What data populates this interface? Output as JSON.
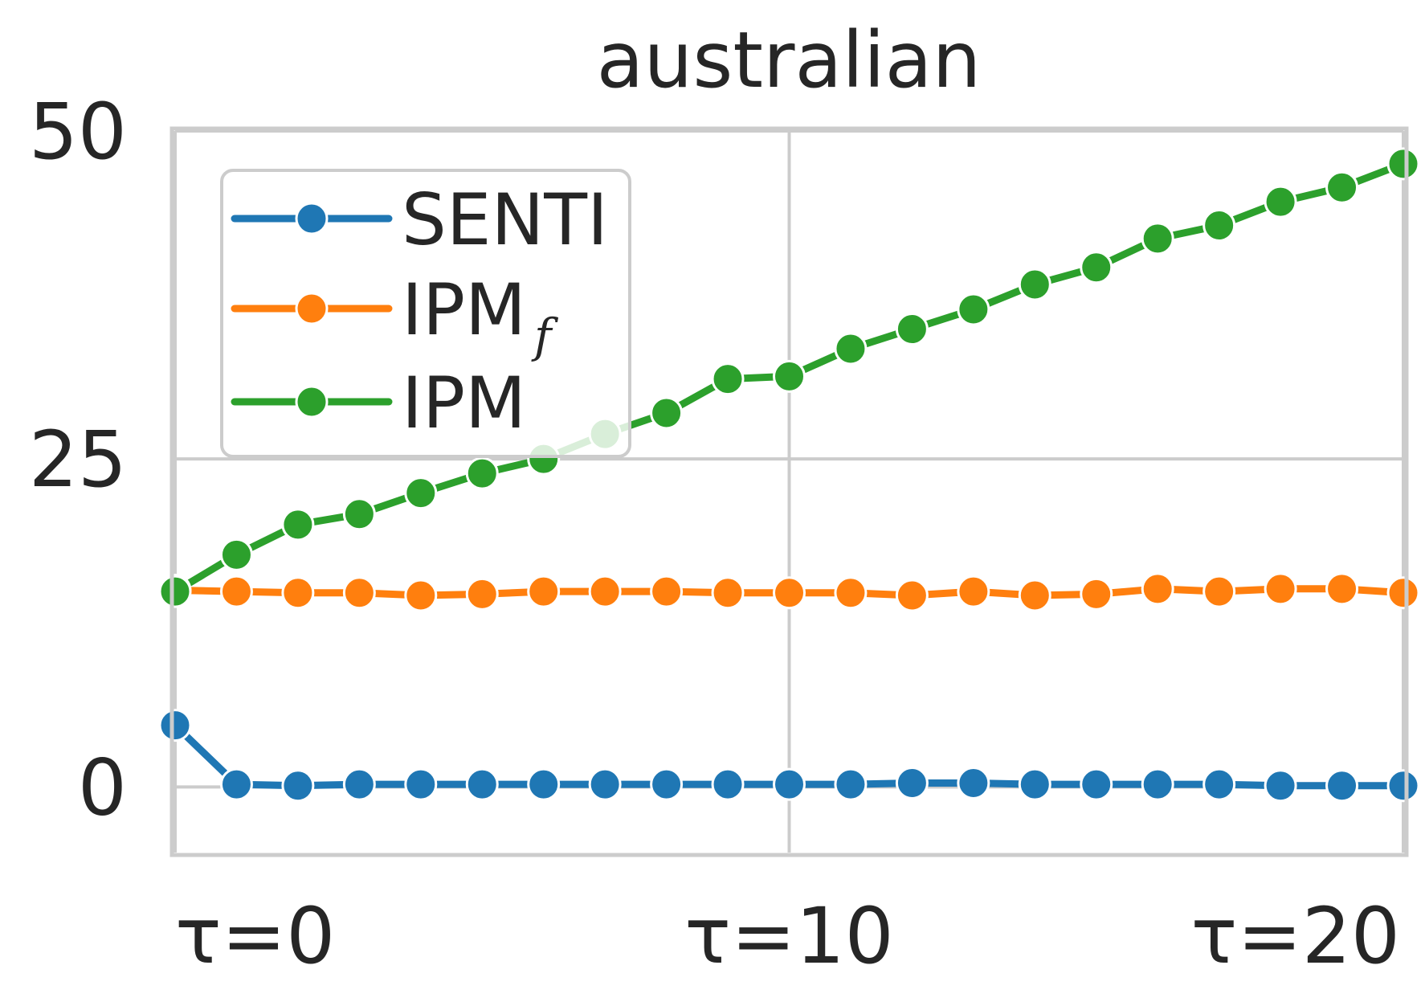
{
  "chart_data": {
    "type": "line",
    "title": "australian",
    "xlabel": "",
    "ylabel": "",
    "x": [
      0,
      1,
      2,
      3,
      4,
      5,
      6,
      7,
      8,
      9,
      10,
      11,
      12,
      13,
      14,
      15,
      16,
      17,
      18,
      19,
      20
    ],
    "xlim": [
      0,
      20
    ],
    "ylim": [
      -5,
      50
    ],
    "x_ticks": [
      {
        "value": 0,
        "label": "τ=0"
      },
      {
        "value": 10,
        "label": "τ=10"
      },
      {
        "value": 20,
        "label": "τ=20"
      }
    ],
    "y_ticks": [
      {
        "value": 0,
        "label": "0"
      },
      {
        "value": 25,
        "label": "25"
      },
      {
        "value": 50,
        "label": "50"
      }
    ],
    "grid": true,
    "legend_position": "top-left",
    "series": [
      {
        "name": "SENTI",
        "color": "#1f77b4",
        "values": [
          4.7,
          0.2,
          0.1,
          0.2,
          0.2,
          0.2,
          0.2,
          0.2,
          0.2,
          0.2,
          0.2,
          0.2,
          0.3,
          0.3,
          0.2,
          0.2,
          0.2,
          0.2,
          0.1,
          0.1,
          0.1
        ]
      },
      {
        "name": "IPM",
        "name_subscript": "f",
        "color": "#ff7f0e",
        "values": [
          15.0,
          14.9,
          14.8,
          14.8,
          14.6,
          14.7,
          14.9,
          14.9,
          14.9,
          14.8,
          14.8,
          14.8,
          14.6,
          14.9,
          14.6,
          14.7,
          15.1,
          14.9,
          15.1,
          15.1,
          14.8
        ]
      },
      {
        "name": "IPM",
        "color": "#2ca02c",
        "values": [
          14.9,
          17.7,
          20.0,
          20.8,
          22.4,
          23.9,
          25.0,
          26.9,
          28.5,
          31.1,
          31.3,
          33.4,
          34.9,
          36.4,
          38.3,
          39.6,
          41.8,
          42.8,
          44.6,
          45.7,
          47.5
        ]
      }
    ]
  }
}
